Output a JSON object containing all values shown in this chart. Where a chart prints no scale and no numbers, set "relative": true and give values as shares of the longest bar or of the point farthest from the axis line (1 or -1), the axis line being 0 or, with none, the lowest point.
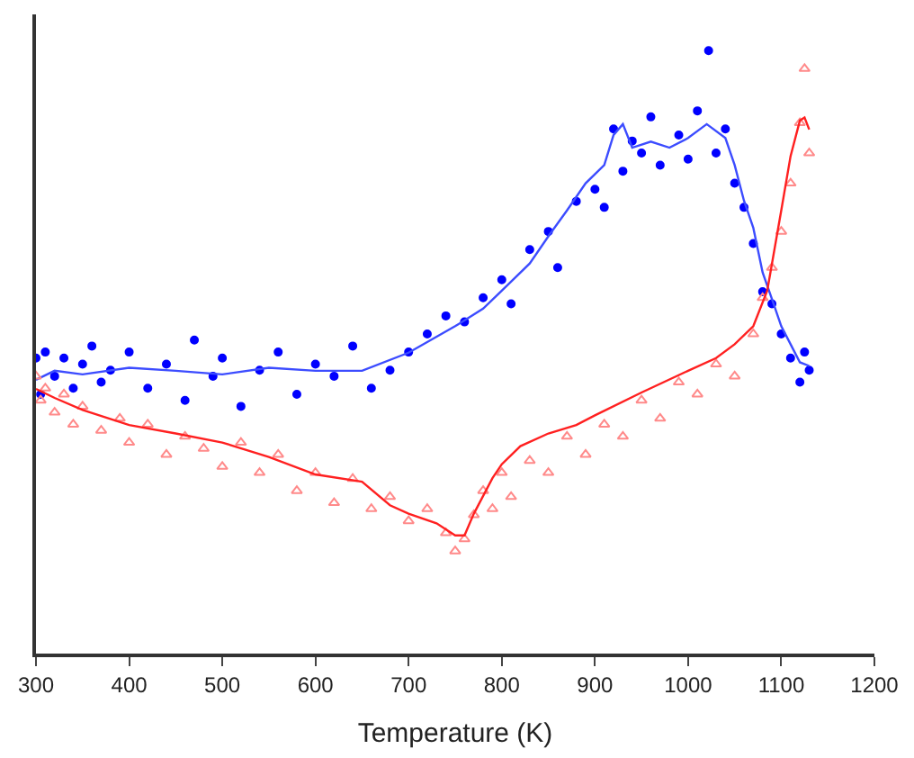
{
  "chart_data": {
    "type": "scatter",
    "xlabel": "Temperature (K)",
    "xlim": [
      300,
      1200
    ],
    "xticks": [
      300,
      400,
      500,
      600,
      700,
      800,
      900,
      1000,
      1100,
      1200
    ],
    "relative": true,
    "tick_labels": "x",
    "series": [
      {
        "marker": "circle",
        "color": "#0000ff",
        "x": [
          300,
          305,
          310,
          320,
          330,
          340,
          350,
          360,
          370,
          380,
          400,
          420,
          440,
          460,
          470,
          490,
          500,
          520,
          540,
          560,
          580,
          600,
          620,
          640,
          660,
          680,
          700,
          720,
          740,
          760,
          780,
          800,
          810,
          830,
          850,
          860,
          880,
          900,
          910,
          920,
          930,
          940,
          950,
          960,
          970,
          990,
          1000,
          1010,
          1022,
          1030,
          1040,
          1050,
          1060,
          1070,
          1080,
          1090,
          1100,
          1110,
          1120,
          1125,
          1130
        ],
        "values": [
          0.49,
          0.43,
          0.5,
          0.46,
          0.49,
          0.44,
          0.48,
          0.51,
          0.45,
          0.47,
          0.5,
          0.44,
          0.48,
          0.42,
          0.52,
          0.46,
          0.49,
          0.41,
          0.47,
          0.5,
          0.43,
          0.48,
          0.46,
          0.51,
          0.44,
          0.47,
          0.5,
          0.53,
          0.56,
          0.55,
          0.59,
          0.62,
          0.58,
          0.67,
          0.7,
          0.64,
          0.75,
          0.77,
          0.74,
          0.87,
          0.8,
          0.85,
          0.83,
          0.89,
          0.81,
          0.86,
          0.82,
          0.9,
          1,
          0.83,
          0.87,
          0.78,
          0.74,
          0.68,
          0.6,
          0.58,
          0.53,
          0.49,
          0.45,
          0.5,
          0.47
        ]
      },
      {
        "type": "line",
        "color": "#3c4cff",
        "x": [
          300,
          320,
          350,
          400,
          450,
          500,
          550,
          600,
          650,
          700,
          750,
          780,
          800,
          830,
          850,
          870,
          890,
          910,
          920,
          930,
          940,
          960,
          980,
          1000,
          1020,
          1040,
          1050,
          1060,
          1070,
          1080,
          1090,
          1100,
          1110,
          1120,
          1130
        ],
        "values": [
          0.454,
          0.469,
          0.463,
          0.474,
          0.469,
          0.463,
          0.474,
          0.469,
          0.469,
          0.499,
          0.543,
          0.572,
          0.602,
          0.647,
          0.692,
          0.735,
          0.78,
          0.81,
          0.86,
          0.878,
          0.839,
          0.849,
          0.839,
          0.855,
          0.878,
          0.855,
          0.81,
          0.751,
          0.706,
          0.632,
          0.588,
          0.543,
          0.513,
          0.483,
          0.477
        ]
      },
      {
        "marker": "triangle",
        "color": "#ff8a8a",
        "x": [
          300,
          305,
          310,
          320,
          330,
          340,
          350,
          370,
          390,
          400,
          420,
          440,
          460,
          480,
          500,
          520,
          540,
          560,
          580,
          600,
          620,
          640,
          660,
          680,
          700,
          720,
          740,
          750,
          760,
          770,
          780,
          790,
          800,
          810,
          830,
          850,
          870,
          890,
          910,
          930,
          950,
          970,
          990,
          1010,
          1030,
          1050,
          1070,
          1080,
          1090,
          1100,
          1110,
          1120,
          1125,
          1130
        ],
        "values": [
          0.46,
          0.42,
          0.44,
          0.4,
          0.43,
          0.38,
          0.41,
          0.37,
          0.39,
          0.35,
          0.38,
          0.33,
          0.36,
          0.34,
          0.31,
          0.35,
          0.3,
          0.33,
          0.27,
          0.3,
          0.25,
          0.29,
          0.24,
          0.26,
          0.22,
          0.24,
          0.2,
          0.17,
          0.19,
          0.23,
          0.27,
          0.24,
          0.3,
          0.26,
          0.32,
          0.3,
          0.36,
          0.33,
          0.38,
          0.36,
          0.42,
          0.39,
          0.45,
          0.43,
          0.48,
          0.46,
          0.53,
          0.59,
          0.64,
          0.7,
          0.78,
          0.88,
          0.97,
          0.83
        ]
      },
      {
        "type": "line",
        "color": "#ff2020",
        "x": [
          300,
          320,
          350,
          400,
          450,
          500,
          550,
          600,
          650,
          680,
          700,
          730,
          750,
          760,
          770,
          790,
          800,
          820,
          850,
          880,
          900,
          950,
          1000,
          1030,
          1050,
          1070,
          1085,
          1100,
          1110,
          1120,
          1125,
          1130
        ],
        "values": [
          0.439,
          0.424,
          0.404,
          0.379,
          0.365,
          0.35,
          0.326,
          0.297,
          0.285,
          0.246,
          0.232,
          0.216,
          0.196,
          0.196,
          0.232,
          0.291,
          0.314,
          0.344,
          0.365,
          0.379,
          0.395,
          0.433,
          0.469,
          0.49,
          0.513,
          0.543,
          0.602,
          0.735,
          0.825,
          0.884,
          0.889,
          0.869
        ]
      }
    ]
  }
}
